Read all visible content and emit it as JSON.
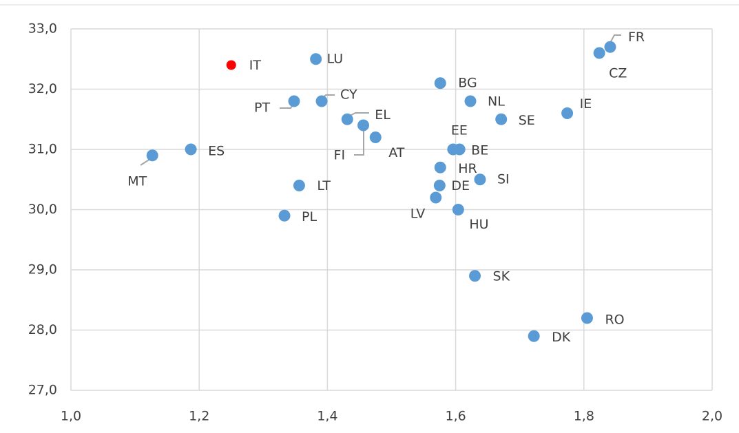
{
  "chart_data": {
    "type": "scatter",
    "point_labels": [
      "IT",
      "LU",
      "FR",
      "CZ",
      "BG",
      "PT",
      "CY",
      "NL",
      "IE",
      "EL",
      "SE",
      "FI",
      "AT",
      "ES",
      "EE",
      "BE",
      "MT",
      "HR",
      "LT",
      "DE",
      "SI",
      "LV",
      "HU",
      "PL",
      "SK",
      "RO",
      "DK"
    ],
    "x": [
      1.25,
      1.382,
      1.841,
      1.824,
      1.576,
      1.348,
      1.391,
      1.623,
      1.774,
      1.431,
      1.671,
      1.456,
      1.475,
      1.187,
      1.596,
      1.606,
      1.127,
      1.576,
      1.356,
      1.575,
      1.638,
      1.569,
      1.604,
      1.333,
      1.63,
      1.805,
      1.722
    ],
    "values": [
      32.4,
      32.5,
      32.7,
      32.6,
      32.1,
      31.8,
      31.8,
      31.8,
      31.6,
      31.5,
      31.5,
      31.4,
      31.2,
      31.0,
      31.0,
      31.0,
      30.9,
      30.7,
      30.4,
      30.4,
      30.5,
      30.2,
      30.0,
      29.9,
      28.9,
      28.2,
      27.9
    ],
    "color": "#5b9bd5",
    "highlight_color": "#ff0000",
    "highlight": [
      "IT"
    ],
    "xlim": [
      1.0,
      2.0
    ],
    "xticks": [
      {
        "value": 1.0,
        "label": "1,0"
      },
      {
        "value": 1.2,
        "label": "1,2"
      },
      {
        "value": 1.4,
        "label": "1,4"
      },
      {
        "value": 1.6,
        "label": "1,6"
      },
      {
        "value": 1.8,
        "label": "1,8"
      },
      {
        "value": 2.0,
        "label": "2,0"
      }
    ],
    "ylim": [
      27.0,
      33.0
    ],
    "yticks": [
      {
        "value": 27.0,
        "label": "27,0"
      },
      {
        "value": 28.0,
        "label": "28,0"
      },
      {
        "value": 29.0,
        "label": "29,0"
      },
      {
        "value": 30.0,
        "label": "30,0"
      },
      {
        "value": 31.0,
        "label": "31,0"
      },
      {
        "value": 32.0,
        "label": "32,0"
      },
      {
        "value": 33.0,
        "label": "33,0"
      }
    ],
    "grid": true
  }
}
